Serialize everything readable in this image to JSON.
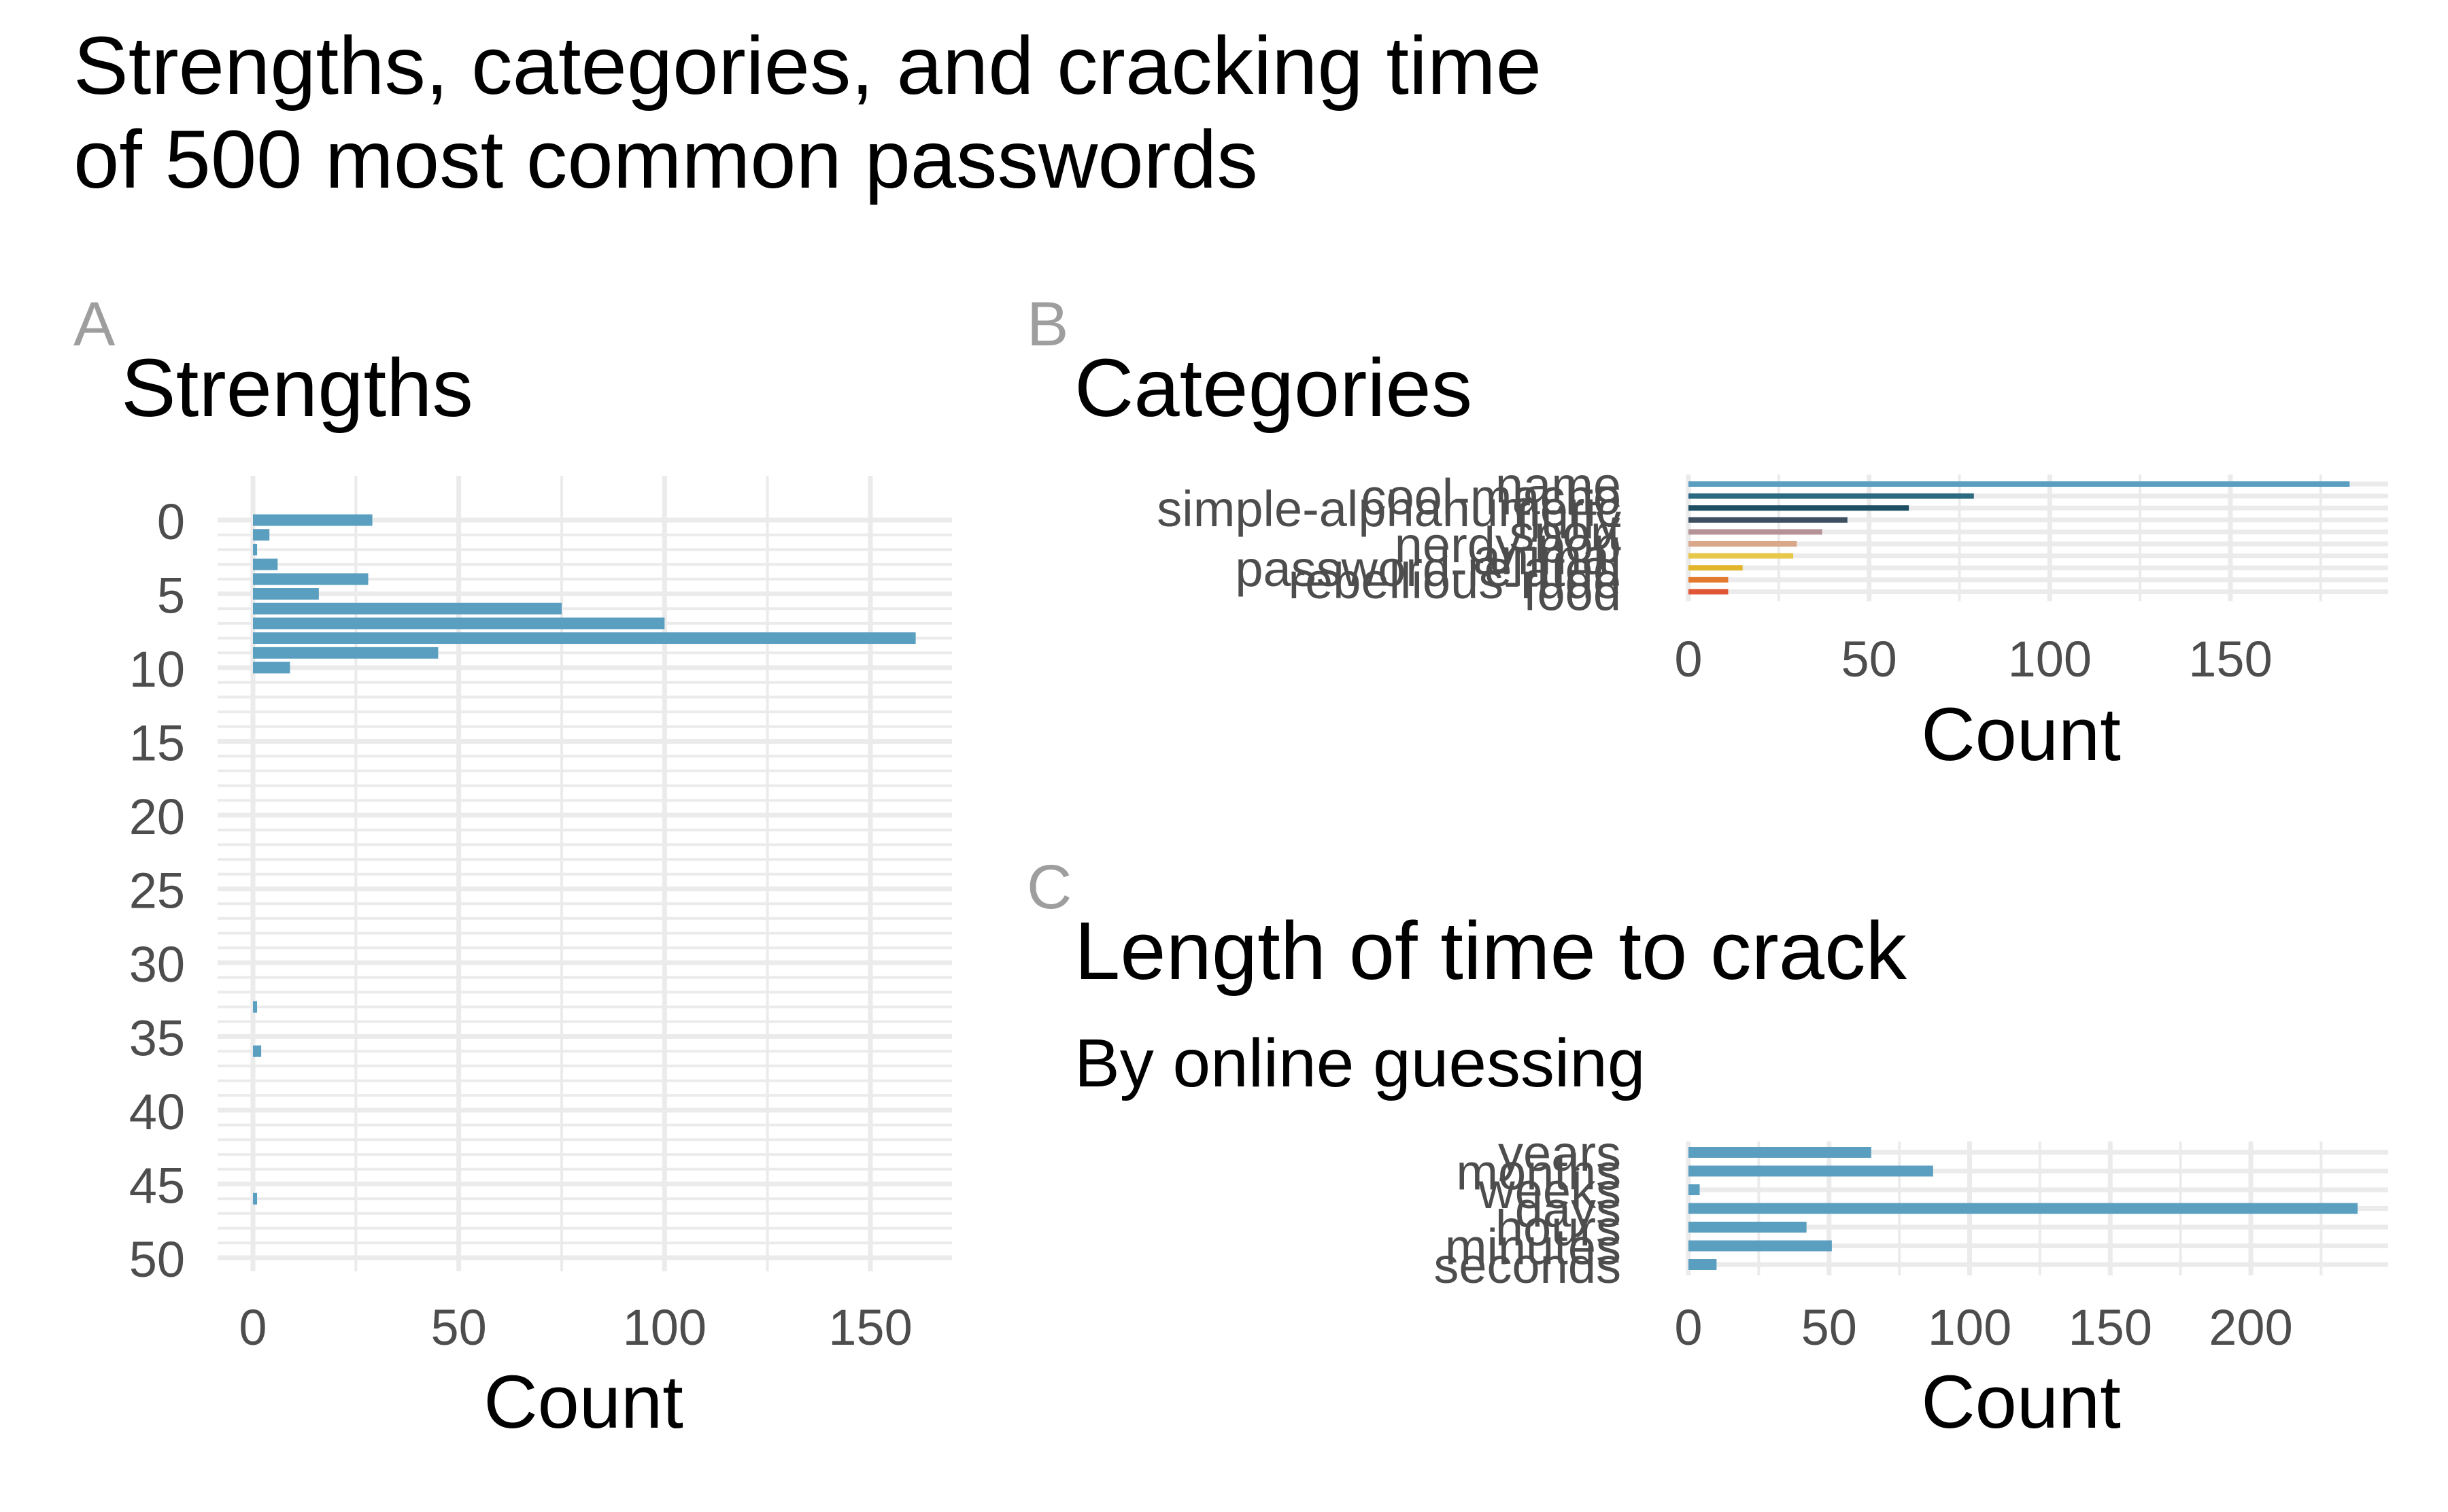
{
  "title_line1": "Strengths, categories, and cracking time",
  "title_line2": "of 500 most common passwords",
  "chart_data": [
    {
      "tag": "A",
      "type": "bar",
      "orientation": "horizontal",
      "title": "Strengths",
      "xlabel": "Count",
      "ylabel": "",
      "xlim": [
        0,
        170
      ],
      "ylim": [
        50,
        0
      ],
      "x_ticks": [
        "0",
        "50",
        "100",
        "150"
      ],
      "y_ticks": [
        "0",
        "5",
        "10",
        "15",
        "20",
        "25",
        "30",
        "35",
        "40",
        "45",
        "50"
      ],
      "grid": true,
      "color": "#5a9ec0",
      "strength": [
        0,
        1,
        2,
        3,
        4,
        5,
        6,
        7,
        8,
        9,
        10,
        33,
        36,
        46
      ],
      "values": [
        29,
        4,
        1,
        6,
        28,
        16,
        75,
        100,
        161,
        45,
        9,
        1,
        2,
        1
      ]
    },
    {
      "tag": "B",
      "type": "bar",
      "orientation": "horizontal",
      "title": "Categories",
      "xlabel": "Count",
      "xlim": [
        0,
        190
      ],
      "x_ticks": [
        "0",
        "50",
        "100",
        "150"
      ],
      "grid": true,
      "categories": [
        "name",
        "cool-macho",
        "simple-alphanumeric",
        "fluffy",
        "sport",
        "nerdy-pop",
        "animal",
        "password-related",
        "rebellious-rude",
        "food"
      ],
      "values": [
        183,
        79,
        61,
        44,
        37,
        30,
        29,
        15,
        11,
        11
      ],
      "colors": [
        "#5a9ec0",
        "#2c6a80",
        "#1f4f63",
        "#3d4f61",
        "#b59296",
        "#d9a78a",
        "#e8c84a",
        "#e2b52c",
        "#e2792e",
        "#e05535"
      ]
    },
    {
      "tag": "C",
      "type": "bar",
      "orientation": "horizontal",
      "title": "Length of time to crack",
      "subtitle": "By online guessing",
      "xlabel": "Count",
      "xlim": [
        0,
        250
      ],
      "x_ticks": [
        "0",
        "50",
        "100",
        "150",
        "200"
      ],
      "grid": true,
      "color": "#5a9ec0",
      "categories": [
        "years",
        "months",
        "weeks",
        "days",
        "hours",
        "minutes",
        "seconds"
      ],
      "values": [
        65,
        87,
        4,
        238,
        42,
        51,
        10
      ]
    }
  ]
}
